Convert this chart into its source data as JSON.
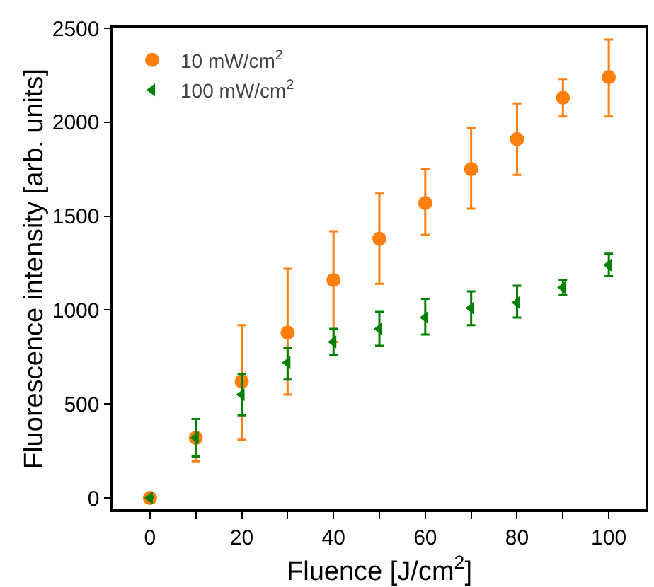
{
  "chart_data": {
    "type": "scatter",
    "xlabel": "Fluence [J/cm$^{2}$]",
    "ylabel": "Fluorescence intensity [arb. units]",
    "x": [
      0,
      10,
      20,
      30,
      40,
      50,
      60,
      70,
      80,
      90,
      100
    ],
    "series": [
      {
        "name": "10 mW/cm$^{2}$",
        "color": "#ff7f0e",
        "marker": "circle",
        "values": [
          0,
          320,
          620,
          880,
          1160,
          1380,
          1570,
          1750,
          1910,
          2130,
          2240
        ],
        "errors": [
          null,
          [
            195,
            420
          ],
          [
            310,
            920
          ],
          [
            550,
            1220
          ],
          [
            830,
            1420
          ],
          [
            1140,
            1620
          ],
          [
            1400,
            1750
          ],
          [
            1540,
            1970
          ],
          [
            1720,
            2100
          ],
          [
            2030,
            2230
          ],
          [
            2030,
            2440
          ]
        ]
      },
      {
        "name": "100 mW/cm$^{2}$",
        "color": "#008000",
        "marker": "triangle-left",
        "values": [
          0,
          320,
          550,
          720,
          830,
          900,
          960,
          1010,
          1040,
          1120,
          1240
        ],
        "errors": [
          null,
          [
            220,
            420
          ],
          [
            440,
            660
          ],
          [
            630,
            800
          ],
          [
            760,
            900
          ],
          [
            810,
            990
          ],
          [
            870,
            1060
          ],
          [
            920,
            1100
          ],
          [
            960,
            1130
          ],
          [
            1080,
            1160
          ],
          [
            1180,
            1300
          ]
        ]
      }
    ],
    "xlim": [
      -8,
      108
    ],
    "ylim": [
      -60,
      2500
    ],
    "xticks": [
      0,
      {
        "value": 10,
        "label": null
      },
      20,
      {
        "value": 30,
        "label": null
      },
      40,
      {
        "value": 50,
        "label": null
      },
      60,
      {
        "value": 70,
        "label": null
      },
      80,
      {
        "value": 90,
        "label": null
      },
      100
    ],
    "yticks": [
      0,
      500,
      1000,
      1500,
      2000,
      2500
    ],
    "grid": false,
    "legend": "top left"
  }
}
